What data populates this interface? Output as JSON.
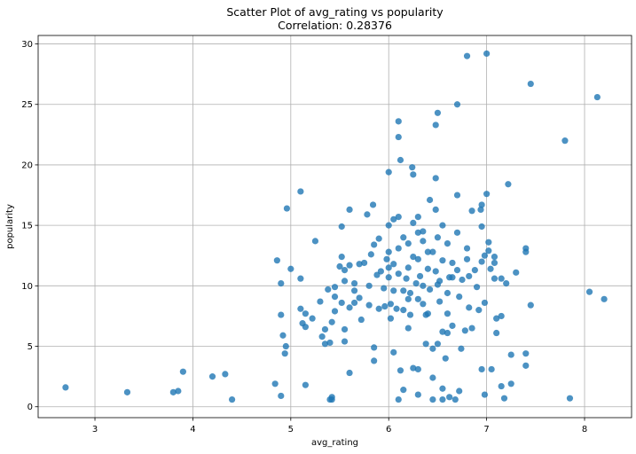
{
  "chart_data": {
    "type": "scatter",
    "title": "Scatter Plot of avg_rating vs popularity",
    "subtitle": "Correlation: 0.28376",
    "xlabel": "avg_rating",
    "ylabel": "popularity",
    "xlim": [
      2.42,
      8.48
    ],
    "ylim": [
      -0.9,
      30.7
    ],
    "xticks": [
      3,
      4,
      5,
      6,
      7,
      8
    ],
    "yticks": [
      0,
      5,
      10,
      15,
      20,
      25,
      30
    ],
    "grid": true,
    "color": "#1f77b4",
    "points": [
      [
        2.7,
        1.6
      ],
      [
        3.33,
        1.2
      ],
      [
        3.8,
        1.2
      ],
      [
        3.85,
        1.3
      ],
      [
        3.9,
        2.9
      ],
      [
        4.2,
        2.5
      ],
      [
        4.33,
        2.7
      ],
      [
        4.4,
        0.6
      ],
      [
        4.84,
        1.9
      ],
      [
        4.86,
        12.1
      ],
      [
        4.9,
        10.2
      ],
      [
        4.9,
        7.6
      ],
      [
        4.9,
        0.9
      ],
      [
        4.92,
        5.9
      ],
      [
        4.94,
        4.4
      ],
      [
        4.95,
        5.0
      ],
      [
        4.96,
        16.4
      ],
      [
        5.0,
        11.4
      ],
      [
        5.1,
        17.8
      ],
      [
        5.1,
        10.6
      ],
      [
        5.1,
        8.1
      ],
      [
        5.12,
        6.9
      ],
      [
        5.15,
        7.7
      ],
      [
        5.15,
        6.6
      ],
      [
        5.15,
        1.8
      ],
      [
        5.25,
        13.7
      ],
      [
        5.22,
        7.3
      ],
      [
        5.3,
        8.7
      ],
      [
        5.32,
        5.8
      ],
      [
        5.35,
        6.4
      ],
      [
        5.35,
        5.2
      ],
      [
        5.38,
        9.7
      ],
      [
        5.4,
        5.3
      ],
      [
        5.4,
        0.6
      ],
      [
        5.42,
        0.8
      ],
      [
        5.42,
        0.6
      ],
      [
        5.42,
        7.0
      ],
      [
        5.45,
        9.9
      ],
      [
        5.45,
        7.9
      ],
      [
        5.45,
        9.1
      ],
      [
        5.5,
        11.6
      ],
      [
        5.52,
        14.9
      ],
      [
        5.52,
        12.4
      ],
      [
        5.52,
        8.6
      ],
      [
        5.55,
        11.3
      ],
      [
        5.55,
        10.4
      ],
      [
        5.55,
        6.4
      ],
      [
        5.55,
        5.4
      ],
      [
        5.6,
        16.3
      ],
      [
        5.6,
        2.8
      ],
      [
        5.6,
        11.7
      ],
      [
        5.6,
        8.2
      ],
      [
        5.65,
        9.6
      ],
      [
        5.65,
        10.2
      ],
      [
        5.65,
        8.6
      ],
      [
        5.7,
        11.8
      ],
      [
        5.7,
        9.0
      ],
      [
        5.72,
        7.2
      ],
      [
        5.75,
        11.9
      ],
      [
        5.78,
        15.9
      ],
      [
        5.8,
        10.0
      ],
      [
        5.8,
        8.4
      ],
      [
        5.82,
        12.6
      ],
      [
        5.84,
        16.7
      ],
      [
        5.85,
        13.4
      ],
      [
        5.85,
        4.9
      ],
      [
        5.85,
        3.8
      ],
      [
        5.88,
        10.9
      ],
      [
        5.9,
        13.9
      ],
      [
        5.9,
        8.1
      ],
      [
        5.92,
        11.2
      ],
      [
        5.95,
        9.8
      ],
      [
        5.96,
        8.3
      ],
      [
        5.98,
        12.2
      ],
      [
        6.0,
        19.4
      ],
      [
        6.0,
        15.0
      ],
      [
        6.0,
        12.8
      ],
      [
        6.0,
        11.5
      ],
      [
        6.0,
        10.7
      ],
      [
        6.02,
        8.5
      ],
      [
        6.02,
        7.3
      ],
      [
        6.05,
        15.5
      ],
      [
        6.05,
        9.6
      ],
      [
        6.05,
        11.8
      ],
      [
        6.05,
        4.5
      ],
      [
        6.08,
        8.1
      ],
      [
        6.1,
        23.6
      ],
      [
        6.1,
        22.3
      ],
      [
        6.1,
        15.7
      ],
      [
        6.1,
        13.1
      ],
      [
        6.1,
        11.0
      ],
      [
        6.1,
        0.6
      ],
      [
        6.12,
        3.0
      ],
      [
        6.12,
        20.4
      ],
      [
        6.15,
        14.0
      ],
      [
        6.15,
        9.6
      ],
      [
        6.15,
        8.0
      ],
      [
        6.15,
        1.4
      ],
      [
        6.18,
        10.6
      ],
      [
        6.2,
        13.5
      ],
      [
        6.2,
        11.5
      ],
      [
        6.2,
        8.9
      ],
      [
        6.2,
        6.5
      ],
      [
        6.22,
        9.4
      ],
      [
        6.22,
        7.6
      ],
      [
        6.24,
        19.8
      ],
      [
        6.25,
        19.2
      ],
      [
        6.25,
        15.2
      ],
      [
        6.25,
        12.4
      ],
      [
        6.25,
        3.2
      ],
      [
        6.28,
        10.2
      ],
      [
        6.3,
        15.7
      ],
      [
        6.3,
        14.4
      ],
      [
        6.3,
        12.2
      ],
      [
        6.3,
        8.9
      ],
      [
        6.3,
        3.1
      ],
      [
        6.3,
        1.0
      ],
      [
        6.32,
        10.8
      ],
      [
        6.35,
        14.5
      ],
      [
        6.35,
        13.7
      ],
      [
        6.35,
        10.0
      ],
      [
        6.35,
        8.5
      ],
      [
        6.38,
        7.6
      ],
      [
        6.38,
        5.2
      ],
      [
        6.4,
        11.4
      ],
      [
        6.4,
        7.7
      ],
      [
        6.4,
        12.8
      ],
      [
        6.42,
        17.1
      ],
      [
        6.42,
        9.7
      ],
      [
        6.45,
        4.8
      ],
      [
        6.45,
        2.4
      ],
      [
        6.45,
        0.6
      ],
      [
        6.45,
        12.8
      ],
      [
        6.48,
        23.3
      ],
      [
        6.48,
        18.9
      ],
      [
        6.48,
        16.3
      ],
      [
        6.48,
        11.2
      ],
      [
        6.5,
        24.3
      ],
      [
        6.5,
        14.0
      ],
      [
        6.5,
        10.1
      ],
      [
        6.5,
        5.2
      ],
      [
        6.52,
        10.4
      ],
      [
        6.52,
        8.7
      ],
      [
        6.55,
        15.0
      ],
      [
        6.55,
        12.1
      ],
      [
        6.55,
        6.2
      ],
      [
        6.55,
        1.5
      ],
      [
        6.55,
        0.6
      ],
      [
        6.58,
        4.0
      ],
      [
        6.6,
        13.5
      ],
      [
        6.6,
        9.4
      ],
      [
        6.6,
        7.7
      ],
      [
        6.6,
        6.1
      ],
      [
        6.62,
        10.7
      ],
      [
        6.62,
        0.8
      ],
      [
        6.65,
        11.9
      ],
      [
        6.65,
        10.7
      ],
      [
        6.65,
        6.7
      ],
      [
        6.68,
        0.6
      ],
      [
        6.7,
        17.5
      ],
      [
        6.7,
        25.0
      ],
      [
        6.7,
        14.4
      ],
      [
        6.7,
        11.3
      ],
      [
        6.72,
        9.1
      ],
      [
        6.72,
        1.3
      ],
      [
        6.74,
        4.8
      ],
      [
        6.75,
        10.5
      ],
      [
        6.78,
        6.3
      ],
      [
        6.8,
        29.0
      ],
      [
        6.8,
        13.1
      ],
      [
        6.8,
        12.2
      ],
      [
        6.82,
        10.8
      ],
      [
        6.82,
        8.2
      ],
      [
        6.85,
        16.2
      ],
      [
        6.85,
        6.5
      ],
      [
        6.88,
        11.3
      ],
      [
        6.9,
        9.9
      ],
      [
        6.92,
        8.0
      ],
      [
        6.94,
        16.3
      ],
      [
        6.95,
        16.7
      ],
      [
        6.95,
        12.0
      ],
      [
        6.95,
        14.9
      ],
      [
        6.95,
        3.1
      ],
      [
        6.98,
        12.5
      ],
      [
        6.98,
        8.6
      ],
      [
        6.98,
        1.0
      ],
      [
        7.0,
        29.2
      ],
      [
        7.0,
        17.6
      ],
      [
        7.02,
        13.6
      ],
      [
        7.02,
        12.9
      ],
      [
        7.04,
        11.4
      ],
      [
        7.05,
        3.1
      ],
      [
        7.08,
        12.4
      ],
      [
        7.08,
        11.9
      ],
      [
        7.08,
        10.6
      ],
      [
        7.1,
        7.3
      ],
      [
        7.1,
        6.1
      ],
      [
        7.15,
        10.6
      ],
      [
        7.15,
        7.5
      ],
      [
        7.15,
        1.7
      ],
      [
        7.18,
        0.7
      ],
      [
        7.2,
        10.2
      ],
      [
        7.22,
        18.4
      ],
      [
        7.25,
        4.3
      ],
      [
        7.25,
        1.9
      ],
      [
        7.3,
        11.1
      ],
      [
        7.4,
        13.1
      ],
      [
        7.4,
        12.8
      ],
      [
        7.4,
        4.4
      ],
      [
        7.4,
        3.4
      ],
      [
        7.45,
        26.7
      ],
      [
        7.45,
        8.4
      ],
      [
        7.8,
        22.0
      ],
      [
        7.85,
        0.7
      ],
      [
        8.05,
        9.5
      ],
      [
        8.13,
        25.6
      ],
      [
        8.2,
        8.9
      ]
    ]
  }
}
